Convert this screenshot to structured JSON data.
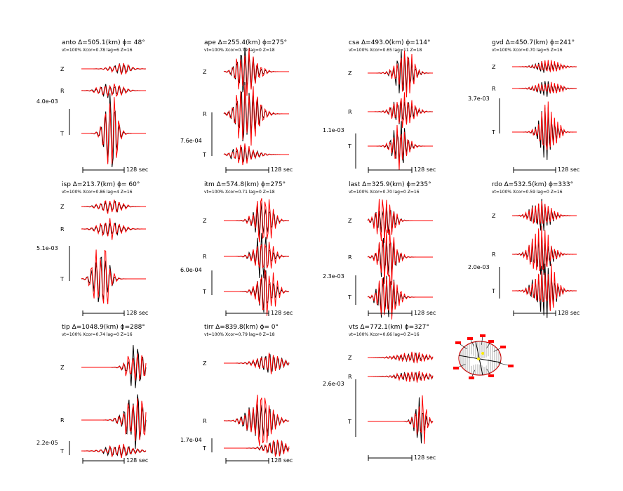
{
  "figure": {
    "colors": {
      "observed": "#000000",
      "synthetic": "#ff0000"
    },
    "scale_label": "128 sec"
  },
  "chart_data": {
    "type": "line",
    "description_components": [
      "Z",
      "R",
      "T"
    ],
    "stations": [
      {
        "name": "anto",
        "delta": "Δ=505.1(km)",
        "phi": "ϕ=  48°",
        "fit": "vt=100% Xcor=0.78 lag=6 Z=16",
        "amplitude": "4.0e-03",
        "components": [
          "Z",
          "R",
          "T"
        ],
        "scale": "128 sec"
      },
      {
        "name": "ape",
        "delta": "Δ=255.4(km)",
        "phi": "ϕ=275°",
        "fit": "vt=100% Xcor=0.79 lag=0 Z=18",
        "amplitude": "7.6e-04",
        "components": [
          "Z",
          "R",
          "T"
        ],
        "scale": "128 sec"
      },
      {
        "name": "csa",
        "delta": "Δ=493.0(km)",
        "phi": "ϕ=114°",
        "fit": "vt=100% Xcor=0.65 lag=11 Z=18",
        "amplitude": "1.1e-03",
        "components": [
          "Z",
          "R",
          "T"
        ],
        "scale": "128 sec"
      },
      {
        "name": "gvd",
        "delta": "Δ=450.7(km)",
        "phi": "ϕ=241°",
        "fit": "vt=100% Xcor=0.70 lag=5 Z=16",
        "amplitude": "3.7e-03",
        "components": [
          "Z",
          "R",
          "T"
        ],
        "scale": "128 sec"
      },
      {
        "name": "isp",
        "delta": "Δ=213.7(km)",
        "phi": "ϕ=  60°",
        "fit": "vt=100% Xcor=0.86 lag=4 Z=16",
        "amplitude": "5.1e-03",
        "components": [
          "Z",
          "R",
          "T"
        ],
        "scale": "128 sec"
      },
      {
        "name": "itm",
        "delta": "Δ=574.8(km)",
        "phi": "ϕ=275°",
        "fit": "vt=100% Xcor=0.71 lag=0 Z=18",
        "amplitude": "6.0e-04",
        "components": [
          "Z",
          "R",
          "T"
        ],
        "scale": "128 sec"
      },
      {
        "name": "last",
        "delta": "Δ=325.9(km)",
        "phi": "ϕ=235°",
        "fit": "vt=100% Xcor=0.70 lag=0 Z=16",
        "amplitude": "2.3e-03",
        "components": [
          "Z",
          "R",
          "T"
        ],
        "scale": "128 sec"
      },
      {
        "name": "rdo",
        "delta": "Δ=532.5(km)",
        "phi": "ϕ=333°",
        "fit": "vt=100% Xcor=0.59 lag=0 Z=16",
        "amplitude": "2.0e-03",
        "components": [
          "Z",
          "R",
          "T"
        ],
        "scale": "128 sec"
      },
      {
        "name": "tip",
        "delta": "Δ=1048.9(km)",
        "phi": "ϕ=288°",
        "fit": "vt=100% Xcor=0.74 lag=0 Z=16",
        "amplitude": "2.2e-05",
        "components": [
          "Z",
          "R",
          "T"
        ],
        "scale": "128 sec"
      },
      {
        "name": "tirr",
        "delta": "Δ=839.8(km)",
        "phi": "ϕ=   0°",
        "fit": "vt=100% Xcor=0.79 lag=0 Z=18",
        "amplitude": "1.7e-04",
        "components": [
          "Z",
          "R",
          "T"
        ],
        "scale": "128 sec"
      },
      {
        "name": "vts",
        "delta": "Δ=772.1(km)",
        "phi": "ϕ=327°",
        "fit": "vt=100% Xcor=0.66 lag=0 Z=16",
        "amplitude": "2.6e-03",
        "components": [
          "Z",
          "R",
          "T"
        ],
        "scale": "128 sec"
      }
    ]
  }
}
